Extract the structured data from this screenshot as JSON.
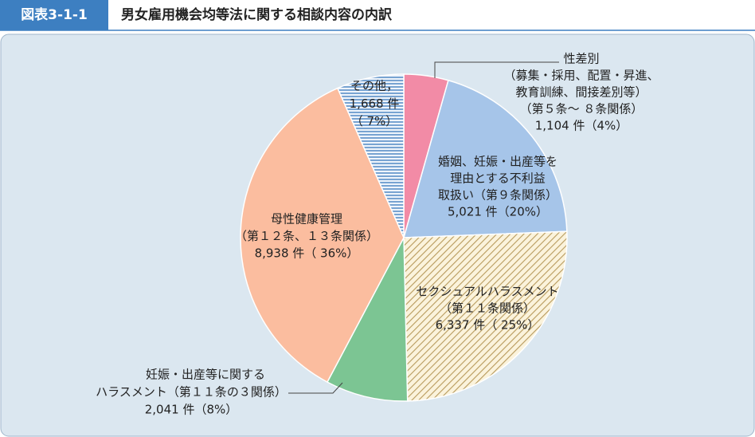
{
  "header": {
    "label": "図表3-1-1",
    "title": "男女雇用機会均等法に関する相談内容の内訳"
  },
  "chart_data": {
    "type": "pie",
    "categories": [
      [
        "性差別",
        "（募集・採用、配置・昇進、",
        "教育訓練、間接差別等）",
        "（第５条～ ８条関係）"
      ],
      [
        "婚姻、妊娠・出産等を",
        "理由とする不利益",
        "取扱い（第９条関係）"
      ],
      [
        "セクシュアルハラスメント",
        "（第１１条関係）"
      ],
      [
        "妊娠・出産等に関する",
        "ハラスメント（第１１条の３関係）"
      ],
      [
        "母性健康管理",
        "（第１２条、１３条関係）"
      ],
      [
        "その他，"
      ]
    ],
    "values": [
      1104,
      5021,
      6337,
      2041,
      8938,
      1668
    ],
    "value_labels": [
      "1,104 件（4%）",
      "5,021 件（20%）",
      "6,337 件（ 25%）",
      "2,041 件（8%）",
      "8,938 件（ 36%）",
      "1,668 件\n（ 7%）"
    ],
    "colors": [
      "#f28ba6",
      "#a6c5e9",
      "#c8b07a",
      "#7cc593",
      "#fbbd9f",
      "#5b8fc7"
    ],
    "hatch": [
      null,
      null,
      "diagonal",
      null,
      null,
      "horizontal"
    ]
  }
}
